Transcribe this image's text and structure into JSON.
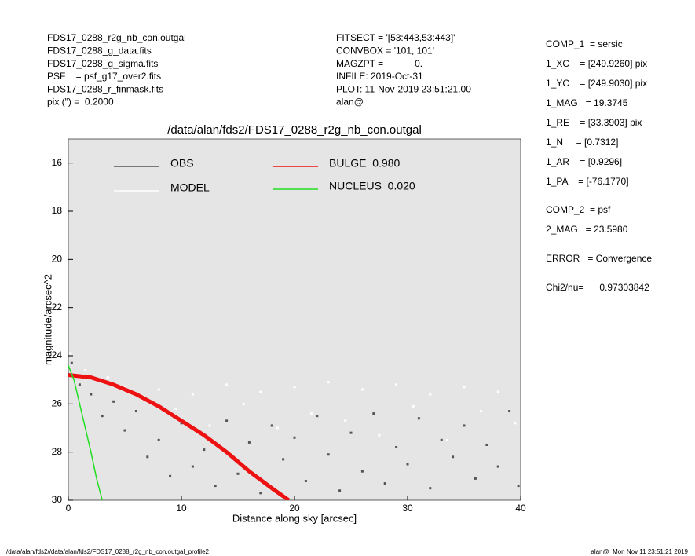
{
  "header": {
    "left": [
      "FDS17_0288_r2g_nb_con.outgal",
      "FDS17_0288_g_data.fits",
      "FDS17_0288_g_sigma.fits",
      "PSF    = psf_g17_over2.fits",
      "FDS17_0288_r_finmask.fits",
      "pix (\") =  0.2000"
    ],
    "middle": [
      "FITSECT = '[53:443,53:443]'",
      "CONVBOX = '101, 101'",
      "MAGZPT =            0.",
      "INFILE: 2019-Oct-31",
      "PLOT: 11-Nov-2019 23:51:21.00",
      "alan@"
    ],
    "right": [
      "COMP_1  = sersic",
      "1_XC    = [249.9260] pix",
      "1_YC    = [249.9030] pix",
      "1_MAG   = 19.3745",
      "1_RE    = [33.3903] pix",
      "1_N     = [0.7312]",
      "1_AR    = [0.9296]",
      "1_PA    = [-76.1770]",
      "COMP_2  = psf",
      "2_MAG   = 23.5980",
      "ERROR   = Convergence",
      "Chi2/nu=      0.97303842"
    ]
  },
  "footer": {
    "left": "/data/alan/fds2//data/alan/fds2/FDS17_0288_r2g_nb_con.outgal_profile2",
    "right": "alan@  Mon Nov 11 23:51:21 2019"
  },
  "chart_data": {
    "type": "scatter",
    "title": "/data/alan/fds2/FDS17_0288_r2g_nb_con.outgal",
    "x_label": "Distance along sky [arcsec]",
    "y_label": "magnitude/arcsec^2",
    "xlim": [
      0,
      40
    ],
    "xticks": [
      0,
      10,
      20,
      30,
      40
    ],
    "ylim": [
      30,
      15
    ],
    "yticks": [
      16,
      18,
      20,
      22,
      24,
      26,
      28,
      30
    ],
    "background": "#e5e5e5",
    "series": [
      {
        "name": "OBS",
        "color": "#555555",
        "mode": "markers",
        "x": [
          0.3,
          1,
          2,
          3,
          4,
          5,
          6,
          7,
          8,
          9,
          10,
          11,
          12,
          13,
          14,
          15,
          16,
          17,
          18,
          19,
          20,
          21,
          22,
          23,
          24,
          25,
          26,
          27,
          28,
          29,
          30,
          31,
          32,
          33,
          34,
          35,
          36,
          37,
          38,
          39,
          39.8
        ],
        "values": [
          24.3,
          25.2,
          25.6,
          26.5,
          25.9,
          27.1,
          26.3,
          28.2,
          27.5,
          29,
          26.8,
          28.6,
          27.9,
          29.4,
          26.7,
          28.9,
          27.6,
          29.7,
          26.9,
          28.3,
          27.4,
          29.2,
          26.5,
          28.1,
          29.6,
          27.2,
          28.8,
          26.4,
          29.3,
          27.8,
          28.5,
          26.6,
          29.5,
          27.5,
          28.2,
          26.9,
          29.1,
          27.7,
          28.6,
          26.3,
          29.4
        ]
      },
      {
        "name": "MODEL",
        "color": "#ffffff",
        "mode": "markers",
        "x": [
          0.2,
          1.5,
          2.5,
          3.5,
          5,
          6.5,
          8,
          9.5,
          11,
          12.5,
          14,
          15.5,
          17,
          18.5,
          20,
          21.5,
          23,
          24.5,
          26,
          27.5,
          29,
          30.5,
          32,
          33.5,
          35,
          36.5,
          38,
          39.5
        ],
        "values": [
          23.9,
          24.6,
          25,
          24.9,
          25.3,
          25.8,
          25.4,
          26.2,
          25.6,
          26.9,
          25.2,
          26,
          25.5,
          27,
          25.3,
          26.4,
          25.1,
          26.7,
          25.4,
          27.3,
          25.2,
          26.1,
          25.6,
          27.5,
          25.3,
          26.3,
          25.5,
          26.8
        ]
      },
      {
        "name": "BULGE  0.980",
        "color": "#ee1111",
        "mode": "lines",
        "x": [
          0,
          2,
          4,
          6,
          8,
          10,
          12,
          14,
          16,
          18,
          19.5
        ],
        "values": [
          24.8,
          24.9,
          25.2,
          25.6,
          26.1,
          26.7,
          27.3,
          28,
          28.8,
          29.5,
          30
        ]
      },
      {
        "name": "NUCLEUS  0.020",
        "color": "#22dd22",
        "mode": "lines",
        "x": [
          0,
          0.5,
          1,
          1.5,
          2,
          2.5,
          3
        ],
        "values": [
          24.4,
          25,
          26,
          27,
          28,
          29.1,
          30
        ]
      }
    ]
  }
}
